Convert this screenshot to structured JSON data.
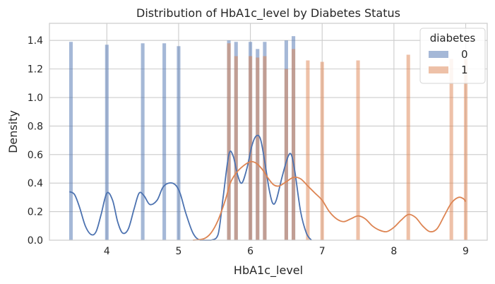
{
  "chart_data": {
    "type": "histogram",
    "title": "Distribution of HbA1c_level by Diabetes Status",
    "xlabel": "HbA1c_level",
    "ylabel": "Density",
    "xlim": [
      3.2,
      9.3
    ],
    "ylim": [
      0,
      1.52
    ],
    "xticks": [
      4,
      5,
      6,
      7,
      8,
      9
    ],
    "yticks": [
      0.0,
      0.2,
      0.4,
      0.6,
      0.8,
      1.0,
      1.2,
      1.4
    ],
    "grid": true,
    "bin_width": 0.05,
    "legend": {
      "title": "diabetes",
      "placement": "top-right"
    },
    "series": [
      {
        "name": "0",
        "color": "#4c72b0",
        "bars": [
          {
            "x": 3.5,
            "y": 1.39
          },
          {
            "x": 4.0,
            "y": 1.37
          },
          {
            "x": 4.5,
            "y": 1.38
          },
          {
            "x": 4.8,
            "y": 1.38
          },
          {
            "x": 5.0,
            "y": 1.36
          },
          {
            "x": 5.7,
            "y": 1.4
          },
          {
            "x": 5.8,
            "y": 1.39
          },
          {
            "x": 6.0,
            "y": 1.39
          },
          {
            "x": 6.1,
            "y": 1.34
          },
          {
            "x": 6.2,
            "y": 1.39
          },
          {
            "x": 6.5,
            "y": 1.4
          },
          {
            "x": 6.6,
            "y": 1.43
          }
        ],
        "kde": [
          [
            3.48,
            0.34
          ],
          [
            3.55,
            0.32
          ],
          [
            3.62,
            0.23
          ],
          [
            3.7,
            0.1
          ],
          [
            3.78,
            0.04
          ],
          [
            3.85,
            0.06
          ],
          [
            3.92,
            0.18
          ],
          [
            4.0,
            0.33
          ],
          [
            4.08,
            0.28
          ],
          [
            4.15,
            0.13
          ],
          [
            4.22,
            0.05
          ],
          [
            4.3,
            0.08
          ],
          [
            4.38,
            0.22
          ],
          [
            4.45,
            0.33
          ],
          [
            4.52,
            0.31
          ],
          [
            4.6,
            0.25
          ],
          [
            4.7,
            0.28
          ],
          [
            4.78,
            0.37
          ],
          [
            4.86,
            0.4
          ],
          [
            4.95,
            0.39
          ],
          [
            5.02,
            0.33
          ],
          [
            5.1,
            0.19
          ],
          [
            5.2,
            0.05
          ],
          [
            5.3,
            0.0
          ],
          [
            5.45,
            0.0
          ],
          [
            5.55,
            0.04
          ],
          [
            5.62,
            0.3
          ],
          [
            5.7,
            0.6
          ],
          [
            5.76,
            0.59
          ],
          [
            5.82,
            0.46
          ],
          [
            5.88,
            0.4
          ],
          [
            5.95,
            0.5
          ],
          [
            6.02,
            0.66
          ],
          [
            6.08,
            0.73
          ],
          [
            6.14,
            0.71
          ],
          [
            6.2,
            0.55
          ],
          [
            6.26,
            0.36
          ],
          [
            6.31,
            0.26
          ],
          [
            6.36,
            0.28
          ],
          [
            6.44,
            0.44
          ],
          [
            6.52,
            0.58
          ],
          [
            6.57,
            0.6
          ],
          [
            6.62,
            0.48
          ],
          [
            6.7,
            0.2
          ],
          [
            6.78,
            0.05
          ],
          [
            6.85,
            0.0
          ]
        ]
      },
      {
        "name": "1",
        "color": "#dd8452",
        "bars": [
          {
            "x": 5.7,
            "y": 1.38
          },
          {
            "x": 5.8,
            "y": 1.29
          },
          {
            "x": 6.0,
            "y": 1.29
          },
          {
            "x": 6.1,
            "y": 1.28
          },
          {
            "x": 6.2,
            "y": 1.29
          },
          {
            "x": 6.5,
            "y": 1.2
          },
          {
            "x": 6.6,
            "y": 1.34
          },
          {
            "x": 6.8,
            "y": 1.26
          },
          {
            "x": 7.0,
            "y": 1.25
          },
          {
            "x": 7.5,
            "y": 1.26
          },
          {
            "x": 8.2,
            "y": 1.3
          },
          {
            "x": 8.8,
            "y": 1.27
          },
          {
            "x": 9.0,
            "y": 1.27
          }
        ],
        "kde": [
          [
            5.2,
            0.0
          ],
          [
            5.35,
            0.01
          ],
          [
            5.45,
            0.05
          ],
          [
            5.55,
            0.14
          ],
          [
            5.65,
            0.28
          ],
          [
            5.72,
            0.4
          ],
          [
            5.8,
            0.47
          ],
          [
            5.9,
            0.52
          ],
          [
            6.0,
            0.55
          ],
          [
            6.08,
            0.54
          ],
          [
            6.16,
            0.5
          ],
          [
            6.24,
            0.44
          ],
          [
            6.32,
            0.39
          ],
          [
            6.4,
            0.38
          ],
          [
            6.5,
            0.41
          ],
          [
            6.6,
            0.44
          ],
          [
            6.7,
            0.43
          ],
          [
            6.8,
            0.38
          ],
          [
            6.9,
            0.33
          ],
          [
            7.0,
            0.28
          ],
          [
            7.1,
            0.2
          ],
          [
            7.2,
            0.15
          ],
          [
            7.3,
            0.13
          ],
          [
            7.4,
            0.15
          ],
          [
            7.5,
            0.17
          ],
          [
            7.6,
            0.15
          ],
          [
            7.7,
            0.1
          ],
          [
            7.8,
            0.07
          ],
          [
            7.9,
            0.06
          ],
          [
            8.0,
            0.09
          ],
          [
            8.1,
            0.14
          ],
          [
            8.2,
            0.18
          ],
          [
            8.3,
            0.16
          ],
          [
            8.4,
            0.1
          ],
          [
            8.5,
            0.06
          ],
          [
            8.6,
            0.08
          ],
          [
            8.7,
            0.17
          ],
          [
            8.8,
            0.26
          ],
          [
            8.9,
            0.3
          ],
          [
            8.97,
            0.29
          ],
          [
            9.0,
            0.27
          ]
        ]
      }
    ]
  }
}
